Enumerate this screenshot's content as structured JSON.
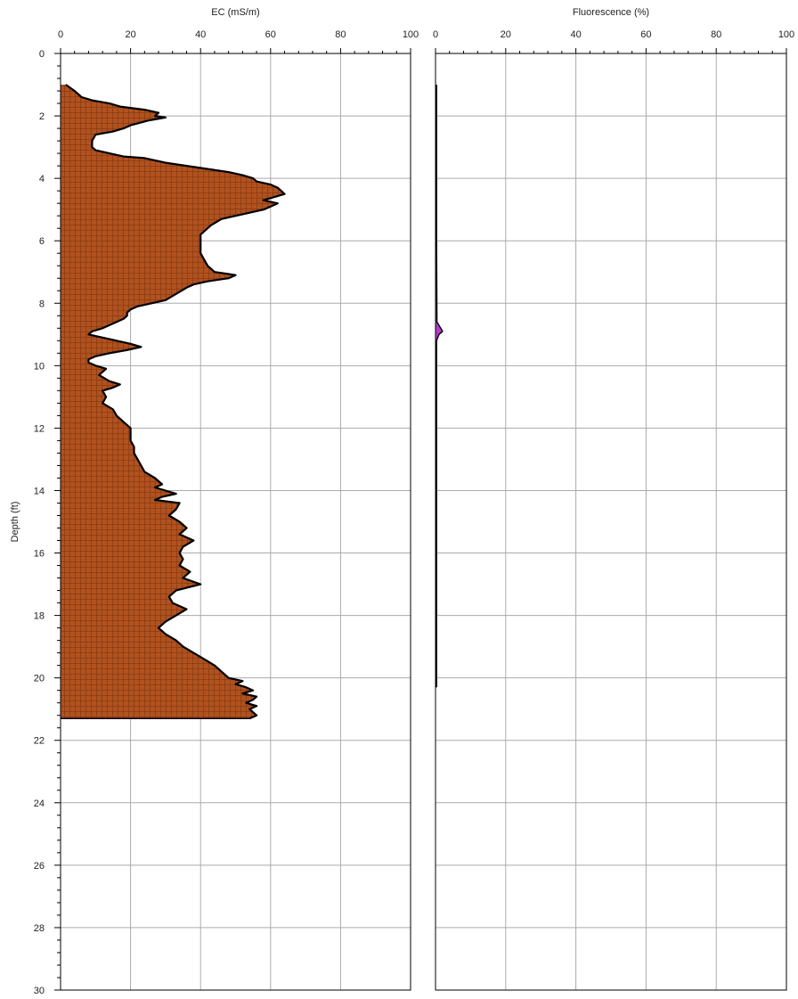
{
  "colors": {
    "ec_fill": "#b0521f",
    "ec_hatch": "#8a3a12",
    "ec_line": "#000000",
    "fl_fill": "#b03cc8",
    "fl_line": "#000000",
    "grid": "#aaaaaa",
    "frame": "#000000",
    "background": "#ffffff"
  },
  "chart_data": [
    {
      "type": "area",
      "orientation": "depth-log",
      "xlabel": "EC (mS/m)",
      "ylabel": "Depth (ft)",
      "xlim": [
        0,
        100
      ],
      "ylim": [
        30,
        0
      ],
      "xticks": [
        "0",
        "20",
        "40",
        "60",
        "80",
        "100"
      ],
      "yticks": [
        "0",
        "2",
        "4",
        "6",
        "8",
        "10",
        "12",
        "14",
        "16",
        "18",
        "20",
        "22",
        "24",
        "26",
        "28",
        "30"
      ],
      "grid": true,
      "series": [
        {
          "depth": [
            1.0,
            1.2,
            1.4,
            1.5,
            1.6,
            1.7,
            1.8,
            1.9,
            2.0,
            2.05,
            2.15,
            2.3,
            2.4,
            2.5,
            2.6,
            2.8,
            3.0,
            3.1,
            3.2,
            3.3,
            3.35,
            3.5,
            3.6,
            3.7,
            3.8,
            3.9,
            4.0,
            4.1,
            4.2,
            4.3,
            4.4,
            4.5,
            4.6,
            4.7,
            4.8,
            4.9,
            5.0,
            5.1,
            5.2,
            5.3,
            5.5,
            5.6,
            5.8,
            6.0,
            6.2,
            6.4,
            6.6,
            6.8,
            7.0,
            7.1,
            7.2,
            7.3,
            7.4,
            7.5,
            7.7,
            7.9,
            8.1,
            8.2,
            8.3,
            8.4,
            8.5,
            8.6,
            8.8,
            8.9,
            9.0,
            9.1,
            9.2,
            9.3,
            9.4,
            9.5,
            9.6,
            9.7,
            9.8,
            9.9,
            10.0,
            10.1,
            10.3,
            10.5,
            10.6,
            10.7,
            10.8,
            11.0,
            11.2,
            11.4,
            11.6,
            11.8,
            12.0,
            12.2,
            12.4,
            12.6,
            12.8,
            13.0,
            13.2,
            13.4,
            13.6,
            13.8,
            13.9,
            14.0,
            14.1,
            14.2,
            14.3,
            14.4,
            14.6,
            14.8,
            15.0,
            15.2,
            15.4,
            15.6,
            15.8,
            16.0,
            16.2,
            16.4,
            16.6,
            16.8,
            17.0,
            17.2,
            17.4,
            17.6,
            17.8,
            18.0,
            18.2,
            18.4,
            18.6,
            18.8,
            19.0,
            19.2,
            19.4,
            19.6,
            19.8,
            20.0,
            20.1,
            20.2,
            20.3,
            20.4,
            20.5,
            20.6,
            20.7,
            20.8,
            20.9,
            21.0,
            21.1,
            21.2,
            21.3
          ],
          "ec": [
            1.5,
            4,
            6,
            9,
            14,
            17,
            24,
            28,
            27,
            30,
            25,
            20,
            18,
            15,
            10,
            9,
            9,
            10,
            14,
            18,
            24,
            30,
            36,
            42,
            48,
            52,
            55,
            56,
            60,
            62,
            63,
            64,
            61,
            58,
            62,
            60,
            58,
            54,
            50,
            46,
            43,
            42,
            40,
            40,
            40,
            40,
            41,
            42,
            44,
            50,
            48,
            42,
            38,
            36,
            33,
            30,
            22,
            20,
            19,
            19,
            18,
            16,
            12,
            9,
            8,
            12,
            16,
            20,
            23,
            19,
            14,
            10,
            8,
            8,
            10,
            13,
            11,
            14,
            17,
            15,
            12,
            13,
            12,
            15,
            16,
            18,
            20,
            20,
            20,
            21,
            21,
            22,
            23,
            24,
            27,
            29,
            27,
            30,
            33,
            29,
            27,
            34,
            33,
            31,
            34,
            36,
            34,
            38,
            35,
            34,
            35,
            34,
            37,
            35,
            40,
            33,
            31,
            32,
            36,
            33,
            30,
            28,
            30,
            33,
            35,
            38,
            41,
            44,
            46,
            48,
            52,
            50,
            53,
            55,
            52,
            56,
            55,
            53,
            56,
            54,
            55,
            56,
            54
          ]
        }
      ]
    },
    {
      "type": "area",
      "orientation": "depth-log",
      "xlabel": "Fluorescence (%)",
      "xlim": [
        0,
        100
      ],
      "ylim": [
        30,
        0
      ],
      "xticks": [
        "0",
        "20",
        "40",
        "60",
        "80",
        "100"
      ],
      "grid": true,
      "series": [
        {
          "depth": [
            1.0,
            3.0,
            6.0,
            8.6,
            8.8,
            8.9,
            9.0,
            9.2,
            12.0,
            16.0,
            20.0,
            20.3
          ],
          "fl": [
            0.3,
            0.3,
            0.3,
            0.4,
            1.5,
            2.0,
            1.0,
            0.3,
            0.3,
            0.3,
            0.3,
            0.3
          ]
        }
      ]
    }
  ]
}
